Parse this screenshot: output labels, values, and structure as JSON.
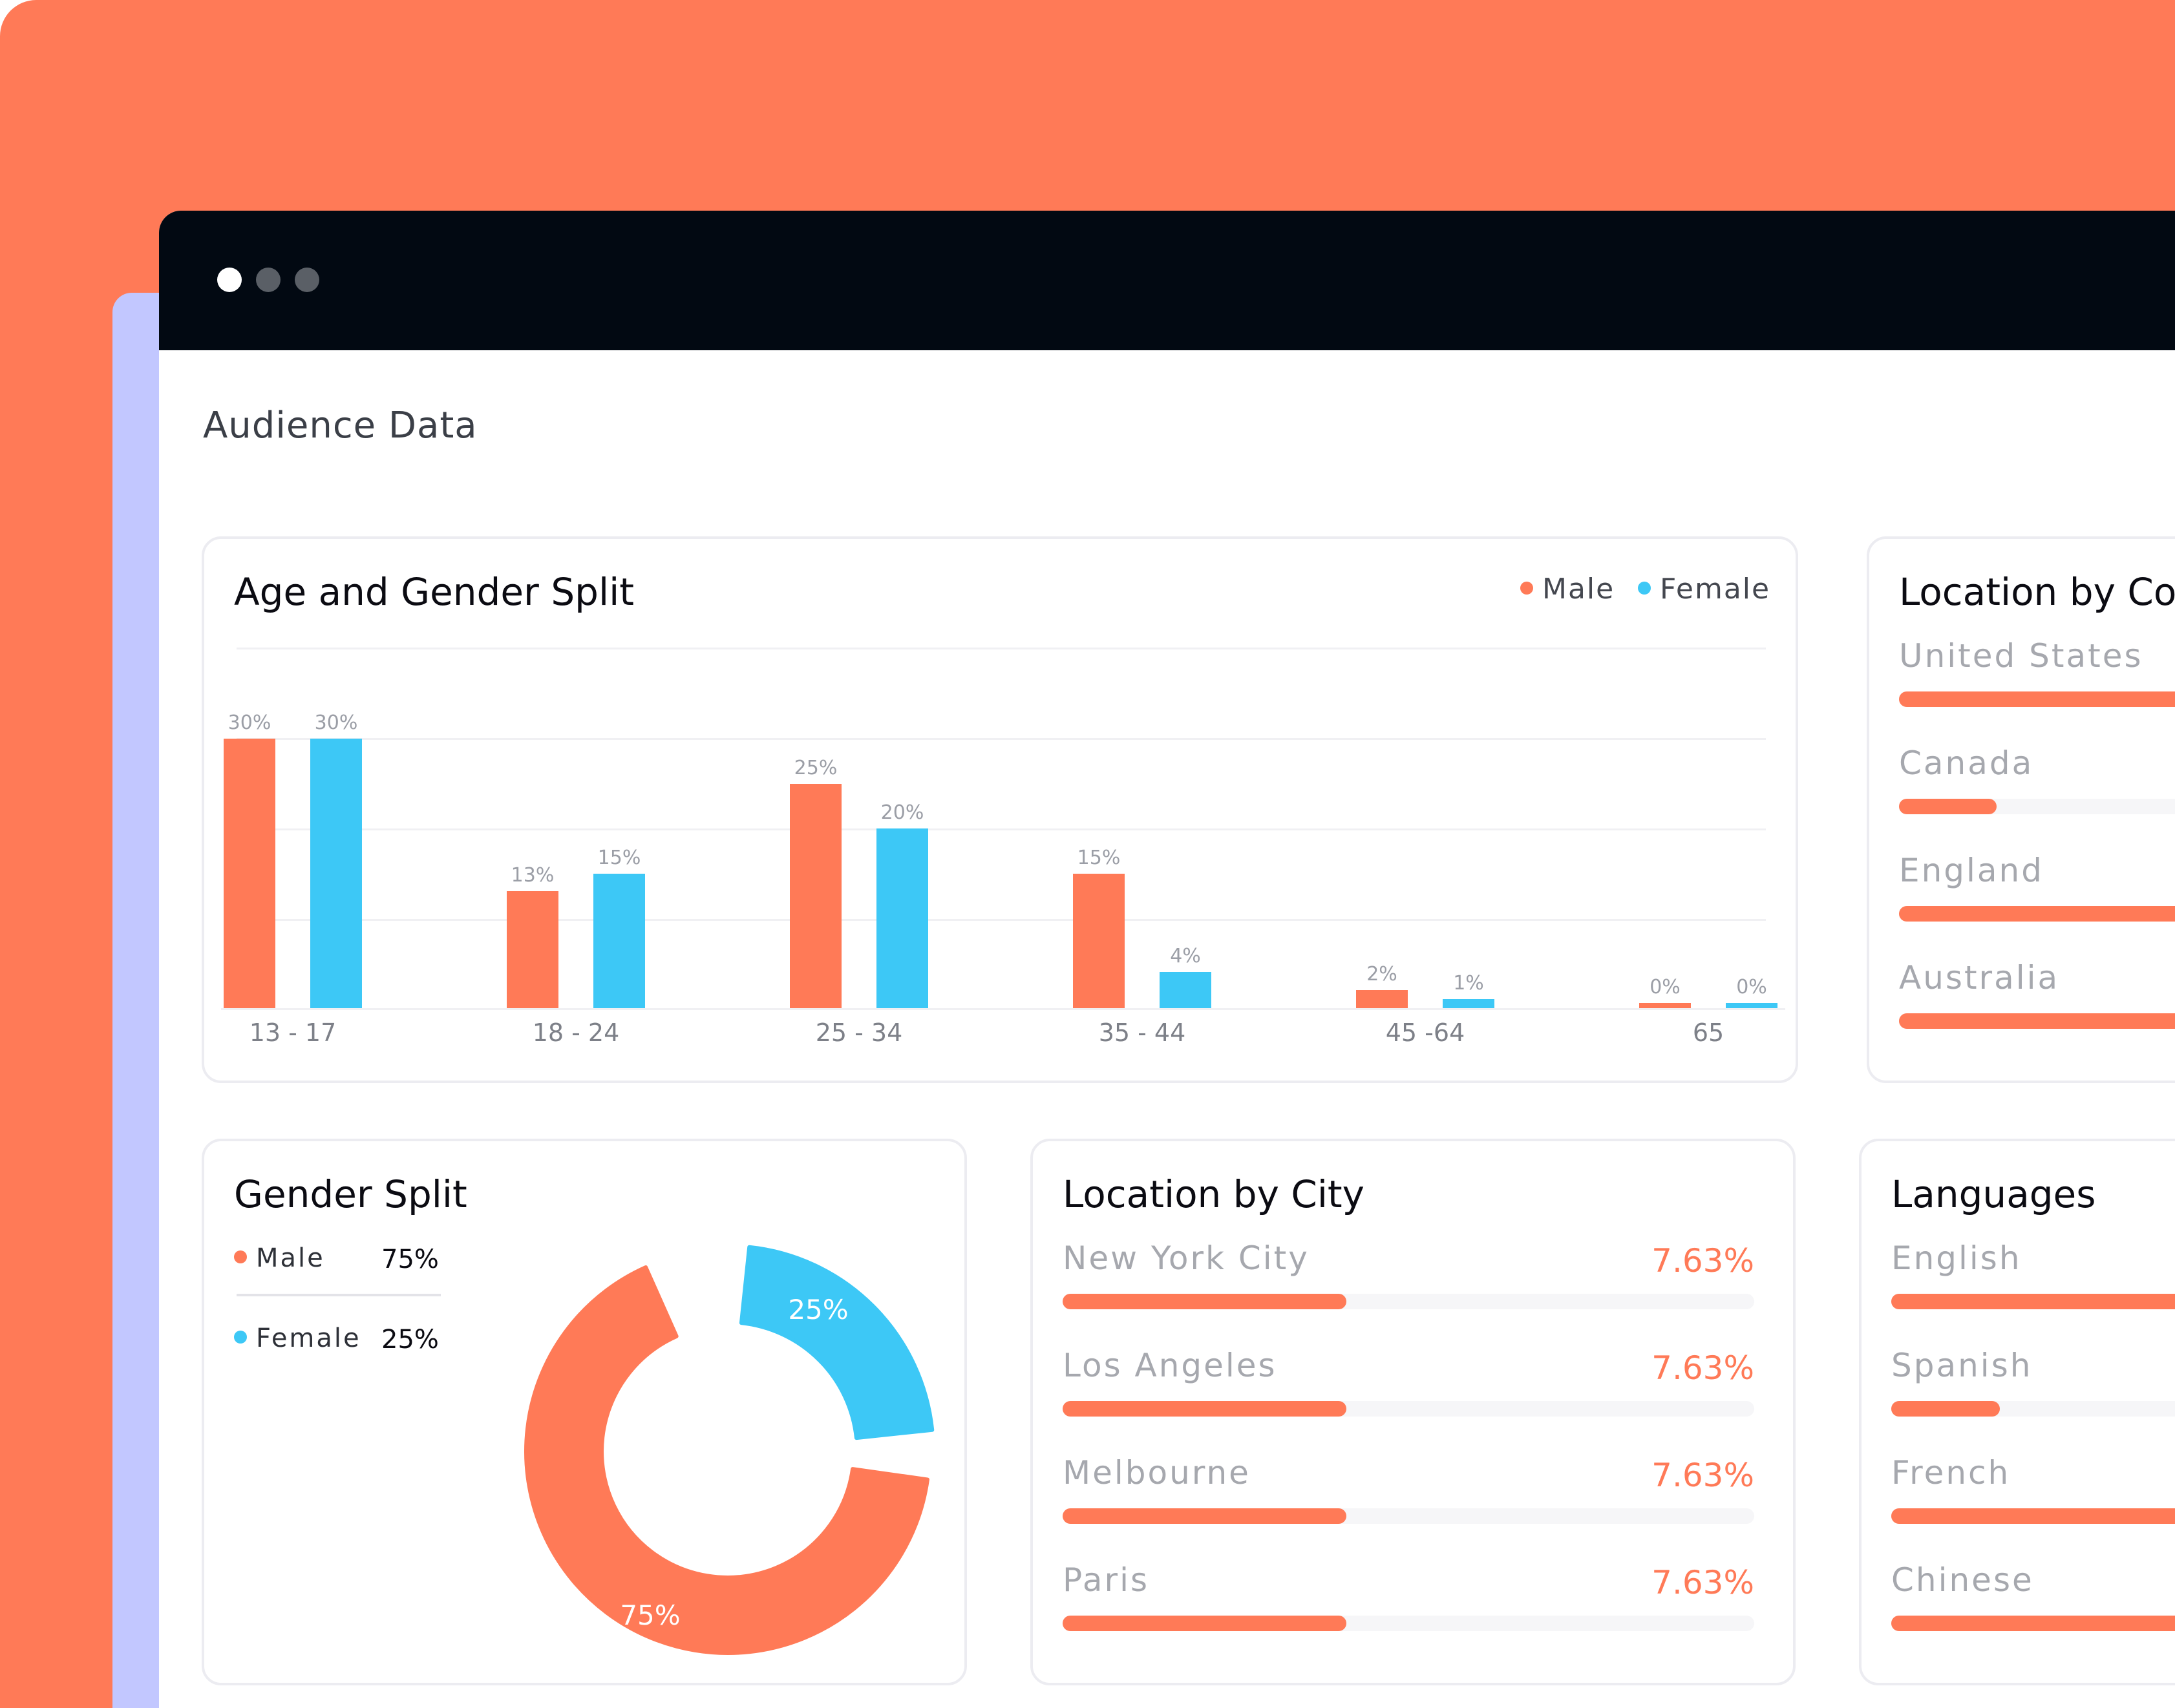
{
  "colors": {
    "accent": "#FF7A57",
    "female": "#3DC8F6",
    "lavender": "#C2C7FF",
    "titlebar": "#020912"
  },
  "window": {
    "dots": [
      {
        "name": "window-dot-1",
        "color": "#FFFFFF"
      },
      {
        "name": "window-dot-2",
        "color": "#5A5F66"
      },
      {
        "name": "window-dot-3",
        "color": "#5A5F66"
      }
    ]
  },
  "page": {
    "title": "Audience Data"
  },
  "age_gender": {
    "title": "Age and Gender Split",
    "legend": {
      "male": "Male",
      "female": "Female"
    }
  },
  "chart_data": {
    "type": "bar",
    "categories": [
      "13 - 17",
      "18 - 24",
      "25 - 34",
      "35 - 44",
      "45 -64",
      "65"
    ],
    "series": [
      {
        "name": "Male",
        "values": [
          30,
          13,
          25,
          15,
          2,
          0
        ],
        "labels": [
          "30%",
          "13%",
          "25%",
          "15%",
          "2%",
          "0%"
        ]
      },
      {
        "name": "Female",
        "values": [
          30,
          15,
          20,
          4,
          1,
          0
        ],
        "labels": [
          "30%",
          "15%",
          "20%",
          "4%",
          "1%",
          "0%"
        ]
      }
    ],
    "grid": true,
    "legend": "top-right"
  },
  "location_country": {
    "title": "Location by Co",
    "rows": [
      {
        "label": "United States",
        "fraction": 1.0
      },
      {
        "label": "Canada",
        "fraction": 0.27
      },
      {
        "label": "England",
        "fraction": 1.0
      },
      {
        "label": "Australia",
        "fraction": 1.0
      }
    ]
  },
  "gender_split": {
    "title": "Gender Split",
    "items": [
      {
        "label": "Male",
        "value": "75%"
      },
      {
        "label": "Female",
        "value": "25%"
      }
    ],
    "donut": [
      {
        "label": "75%",
        "value": 75
      },
      {
        "label": "25%",
        "value": 25
      }
    ]
  },
  "location_city": {
    "title": "Location by City",
    "rows": [
      {
        "label": "New York City",
        "value": "7.63%",
        "fraction": 0.41
      },
      {
        "label": "Los Angeles",
        "value": "7.63%",
        "fraction": 0.41
      },
      {
        "label": "Melbourne",
        "value": "7.63%",
        "fraction": 0.41
      },
      {
        "label": "Paris",
        "value": "7.63%",
        "fraction": 0.41
      }
    ]
  },
  "languages": {
    "title": "Languages",
    "rows": [
      {
        "label": "English",
        "fraction": 1.0
      },
      {
        "label": "Spanish",
        "fraction": 0.3
      },
      {
        "label": "French",
        "fraction": 1.0
      },
      {
        "label": "Chinese",
        "fraction": 1.0
      }
    ]
  }
}
